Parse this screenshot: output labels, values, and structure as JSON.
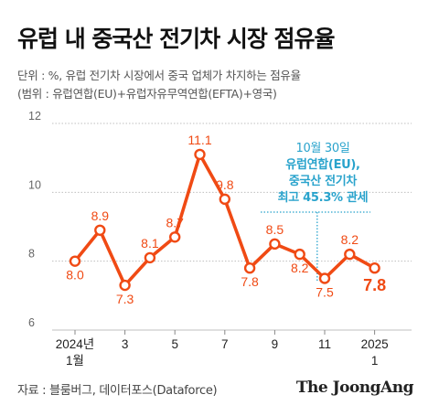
{
  "title": "유럽 내 중국산 전기차 시장 점유율",
  "notes": {
    "line1": "단위 : %, 유럽 전기차 시장에서 중국 업체가 차지하는 점유율",
    "line2": "(범위 : 유럽연합(EU)+유럽자유무역연합(EFTA)+영국)"
  },
  "annotation": {
    "line1": "10월 30일",
    "line2": "유럽연합(EU),",
    "line3": "중국산 전기차",
    "line4": "최고 45.3% 관세"
  },
  "source": "자료 : 블룸버그, 데이터포스(Dataforce)",
  "logo": "The JoongAng",
  "colors": {
    "line": "#f04a14",
    "annotation": "#29a3cc",
    "grid": "#bfbfbf"
  },
  "chart_data": {
    "type": "line",
    "title": "유럽 내 중국산 전기차 시장 점유율",
    "ylim": [
      6,
      12
    ],
    "yticks": [
      "12",
      "10",
      "8",
      "6"
    ],
    "xtick_labels": [
      {
        "i": 0,
        "line1": "2024년",
        "line2": "1월"
      },
      {
        "i": 2,
        "line1": "3",
        "line2": ""
      },
      {
        "i": 4,
        "line1": "5",
        "line2": ""
      },
      {
        "i": 6,
        "line1": "7",
        "line2": ""
      },
      {
        "i": 8,
        "line1": "9",
        "line2": ""
      },
      {
        "i": 10,
        "line1": "11",
        "line2": ""
      },
      {
        "i": 12,
        "line1": "2025",
        "line2": "1"
      }
    ],
    "series": [
      {
        "values": [
          8.0,
          8.9,
          7.3,
          8.1,
          8.7,
          11.1,
          9.8,
          7.8,
          8.5,
          8.2,
          7.5,
          8.2,
          7.8
        ],
        "labels": [
          "8.0",
          "8.9",
          "7.3",
          "8.1",
          "8.7",
          "11.1",
          "9.8",
          "7.8",
          "8.5",
          "8.2",
          "7.5",
          "8.2",
          "7.8"
        ]
      }
    ],
    "grid": true
  }
}
